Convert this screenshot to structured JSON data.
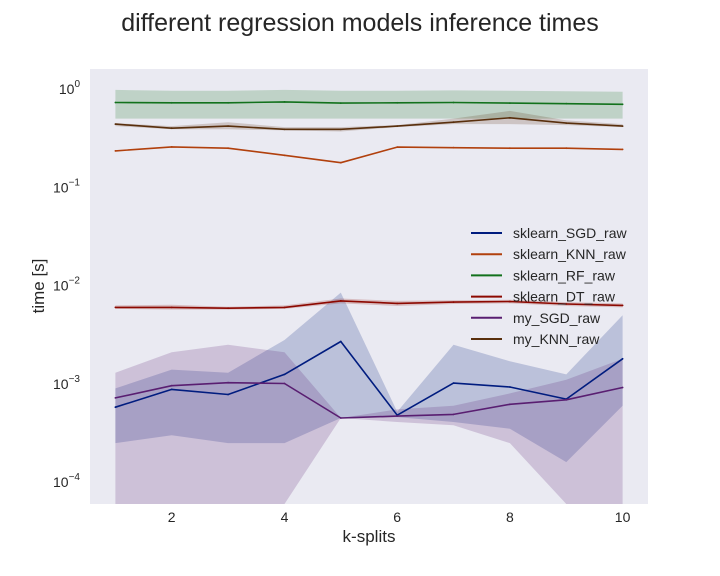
{
  "chart_data": {
    "type": "line",
    "title": "different regression models inference times",
    "xlabel": "k-splits",
    "ylabel": "time [s]",
    "x": [
      1,
      2,
      3,
      4,
      5,
      6,
      7,
      8,
      9,
      10
    ],
    "xlim": [
      0.55,
      10.45
    ],
    "ylim": [
      6e-05,
      1.6
    ],
    "yscale": "log",
    "xticks": [
      2,
      4,
      6,
      8,
      10
    ],
    "xtick_labels": [
      "2",
      "4",
      "6",
      "8",
      "10"
    ],
    "yticks": [
      0.0001,
      0.001,
      0.01,
      0.1,
      1
    ],
    "ytick_labels": [
      {
        "base": "10",
        "exp": "−4"
      },
      {
        "base": "10",
        "exp": "−3"
      },
      {
        "base": "10",
        "exp": "−2"
      },
      {
        "base": "10",
        "exp": "−1"
      },
      {
        "base": "10",
        "exp": "0"
      }
    ],
    "grid": false,
    "background": "#eaeaf2",
    "legend_position": "center-right",
    "series": [
      {
        "name": "sklearn_SGD_raw",
        "color": "#001c7f",
        "values": [
          0.00058,
          0.00088,
          0.00078,
          0.00125,
          0.0027,
          0.00048,
          0.00102,
          0.00093,
          0.0007,
          0.0018
        ],
        "band_upper": [
          0.0009,
          0.0014,
          0.0013,
          0.0028,
          0.0085,
          0.00052,
          0.0025,
          0.0017,
          0.00125,
          0.005
        ],
        "band_lower": [
          0.00025,
          0.0003,
          0.00025,
          0.00025,
          0.00045,
          0.00046,
          0.00041,
          0.00035,
          0.00016,
          0.0006
        ]
      },
      {
        "name": "sklearn_KNN_raw",
        "color": "#b1400d",
        "values": [
          0.235,
          0.258,
          0.25,
          0.212,
          0.178,
          0.257,
          0.253,
          0.25,
          0.25,
          0.243
        ],
        "band_upper": [
          0.235,
          0.258,
          0.25,
          0.212,
          0.178,
          0.257,
          0.253,
          0.25,
          0.25,
          0.243
        ],
        "band_lower": [
          0.235,
          0.258,
          0.25,
          0.212,
          0.178,
          0.257,
          0.253,
          0.25,
          0.25,
          0.243
        ]
      },
      {
        "name": "sklearn_RF_raw",
        "color": "#12711c",
        "values": [
          0.73,
          0.725,
          0.725,
          0.74,
          0.72,
          0.725,
          0.73,
          0.72,
          0.71,
          0.7
        ],
        "band_upper": [
          0.98,
          0.96,
          0.96,
          0.98,
          0.96,
          0.96,
          0.97,
          0.96,
          0.95,
          0.94
        ],
        "band_lower": [
          0.5,
          0.5,
          0.5,
          0.5,
          0.5,
          0.5,
          0.5,
          0.5,
          0.5,
          0.5
        ]
      },
      {
        "name": "sklearn_DT_raw",
        "color": "#8c0800",
        "values": [
          0.006,
          0.006,
          0.0059,
          0.006,
          0.007,
          0.0066,
          0.0068,
          0.0069,
          0.0065,
          0.0063
        ],
        "band_upper": [
          0.0063,
          0.0064,
          0.0061,
          0.0063,
          0.0074,
          0.007,
          0.0071,
          0.0072,
          0.0068,
          0.0066
        ],
        "band_lower": [
          0.0058,
          0.0057,
          0.0057,
          0.0058,
          0.0066,
          0.0062,
          0.0065,
          0.0066,
          0.0062,
          0.006
        ]
      },
      {
        "name": "my_SGD_raw",
        "color": "#591e71",
        "values": [
          0.00072,
          0.00096,
          0.00103,
          0.00101,
          0.00045,
          0.00047,
          0.00049,
          0.00062,
          0.00069,
          0.00092
        ],
        "band_upper": [
          0.0013,
          0.0021,
          0.0025,
          0.0021,
          0.00045,
          0.00055,
          0.0006,
          0.0008,
          0.0011,
          0.0018
        ],
        "band_lower": [
          1e-05,
          1e-05,
          1e-05,
          1e-05,
          0.00045,
          0.00041,
          0.00038,
          0.00025,
          1e-05,
          1e-05
        ]
      },
      {
        "name": "my_KNN_raw",
        "color": "#592f0d",
        "values": [
          0.44,
          0.4,
          0.42,
          0.39,
          0.39,
          0.42,
          0.46,
          0.51,
          0.45,
          0.42
        ],
        "band_upper": [
          0.45,
          0.42,
          0.46,
          0.41,
          0.41,
          0.43,
          0.5,
          0.6,
          0.48,
          0.44
        ],
        "band_lower": [
          0.42,
          0.39,
          0.39,
          0.38,
          0.37,
          0.41,
          0.44,
          0.44,
          0.43,
          0.41
        ]
      }
    ]
  }
}
